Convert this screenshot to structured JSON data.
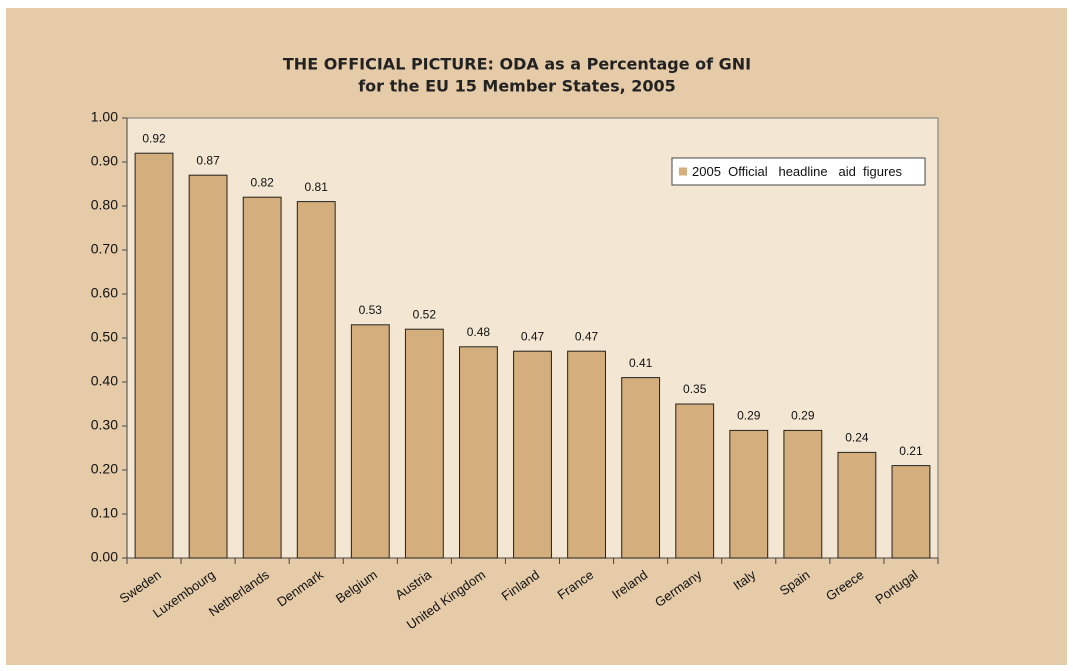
{
  "chart_data": {
    "type": "bar",
    "title": [
      "THE OFFICIAL PICTURE: ODA as a Percentage of GNI",
      "for the EU 15 Member States, 2005"
    ],
    "categories": [
      "Sweden",
      "Luxembourg",
      "Netherlands",
      "Denmark",
      "Belgium",
      "Austria",
      "United Kingdom",
      "Finland",
      "France",
      "Ireland",
      "Germany",
      "Italy",
      "Spain",
      "Greece",
      "Portugal"
    ],
    "series": [
      {
        "name": "2005  Official   headline   aid  figures",
        "color": "#d4ae7c",
        "values": [
          0.92,
          0.87,
          0.82,
          0.81,
          0.53,
          0.52,
          0.48,
          0.47,
          0.47,
          0.41,
          0.35,
          0.29,
          0.29,
          0.24,
          0.21
        ]
      }
    ],
    "ylim": [
      0,
      1
    ],
    "yticks": [
      {
        "value": 0,
        "label": "0.00"
      },
      {
        "value": 0.1,
        "label": "0.10"
      },
      {
        "value": 0.2,
        "label": "0.20"
      },
      {
        "value": 0.3,
        "label": "0.30"
      },
      {
        "value": 0.4,
        "label": "0.40"
      },
      {
        "value": 0.5,
        "label": "0.50"
      },
      {
        "value": 0.6,
        "label": "0.60"
      },
      {
        "value": 0.7,
        "label": "0.70"
      },
      {
        "value": 0.8,
        "label": "0.80"
      },
      {
        "value": 0.9,
        "label": "0.90"
      },
      {
        "value": 1,
        "label": "1.00"
      }
    ],
    "legend": "upper right",
    "grid": false
  }
}
